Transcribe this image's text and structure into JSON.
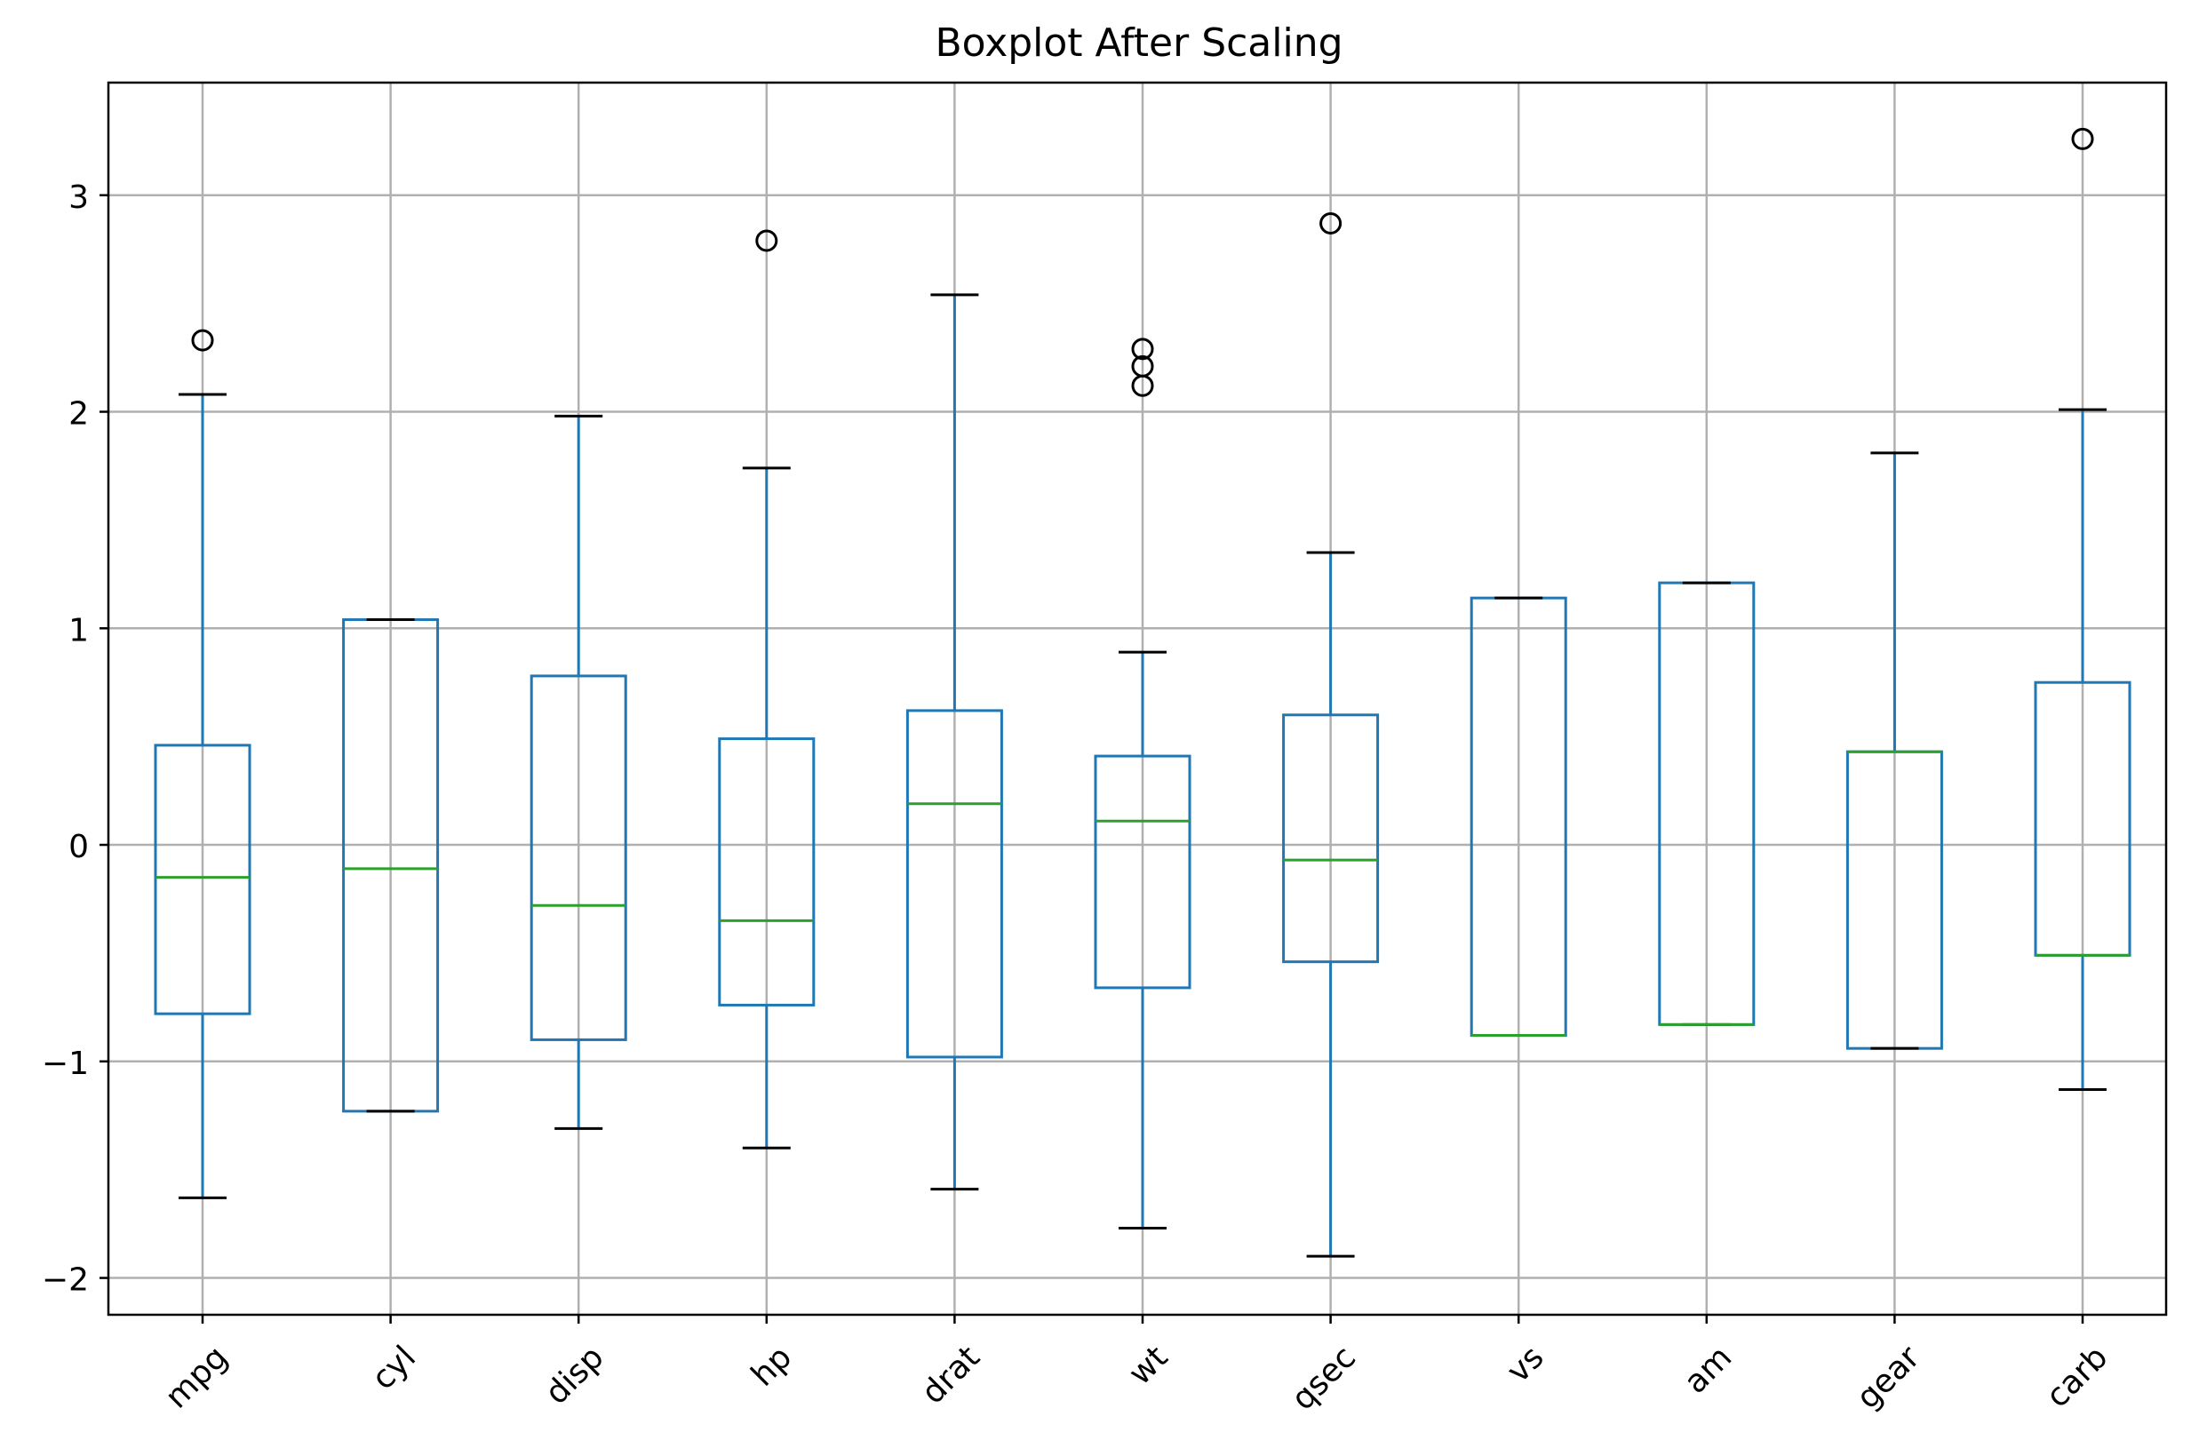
{
  "chart_data": {
    "type": "boxplot",
    "title": "Boxplot After Scaling",
    "xlabel": "",
    "ylabel": "",
    "ylim": [
      -2.17,
      3.52
    ],
    "yticks": [
      -2,
      -1,
      0,
      1,
      2,
      3
    ],
    "ytick_labels": [
      "−2",
      "−1",
      "0",
      "1",
      "2",
      "3"
    ],
    "grid": true,
    "categories": [
      "mpg",
      "cyl",
      "disp",
      "hp",
      "drat",
      "wt",
      "qsec",
      "vs",
      "am",
      "gear",
      "carb"
    ],
    "boxes": [
      {
        "label": "mpg",
        "whislo": -1.63,
        "q1": -0.78,
        "med": -0.15,
        "q3": 0.46,
        "whishi": 2.08,
        "fliers": [
          2.33
        ]
      },
      {
        "label": "cyl",
        "whislo": -1.23,
        "q1": -1.23,
        "med": -0.11,
        "q3": 1.04,
        "whishi": 1.04,
        "fliers": []
      },
      {
        "label": "disp",
        "whislo": -1.31,
        "q1": -0.9,
        "med": -0.28,
        "q3": 0.78,
        "whishi": 1.98,
        "fliers": []
      },
      {
        "label": "hp",
        "whislo": -1.4,
        "q1": -0.74,
        "med": -0.35,
        "q3": 0.49,
        "whishi": 1.74,
        "fliers": [
          2.79
        ]
      },
      {
        "label": "drat",
        "whislo": -1.59,
        "q1": -0.98,
        "med": 0.19,
        "q3": 0.62,
        "whishi": 2.54,
        "fliers": []
      },
      {
        "label": "wt",
        "whislo": -1.77,
        "q1": -0.66,
        "med": 0.11,
        "q3": 0.41,
        "whishi": 0.89,
        "fliers": [
          2.12,
          2.21,
          2.29
        ]
      },
      {
        "label": "qsec",
        "whislo": -1.9,
        "q1": -0.54,
        "med": -0.07,
        "q3": 0.6,
        "whishi": 1.35,
        "fliers": [
          2.87
        ]
      },
      {
        "label": "vs",
        "whislo": -0.88,
        "q1": -0.88,
        "med": -0.88,
        "q3": 1.14,
        "whishi": 1.14,
        "fliers": []
      },
      {
        "label": "am",
        "whislo": -0.83,
        "q1": -0.83,
        "med": -0.83,
        "q3": 1.21,
        "whishi": 1.21,
        "fliers": []
      },
      {
        "label": "gear",
        "whislo": -0.94,
        "q1": -0.94,
        "med": 0.43,
        "q3": 0.43,
        "whishi": 1.81,
        "fliers": []
      },
      {
        "label": "carb",
        "whislo": -1.13,
        "q1": -0.51,
        "med": -0.51,
        "q3": 0.75,
        "whishi": 2.01,
        "fliers": [
          3.26
        ]
      }
    ],
    "colors": {
      "box": "#1f77b4",
      "median": "#2ca02c",
      "cap": "#000000",
      "flier": "#000000",
      "grid": "#b0b0b0",
      "axes": "#000000"
    }
  }
}
